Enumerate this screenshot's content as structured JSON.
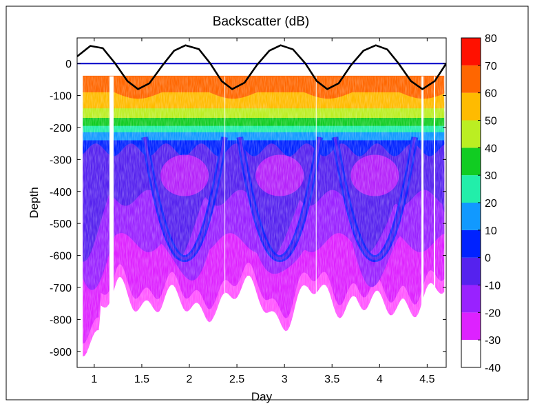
{
  "chart_data": {
    "type": "heatmap",
    "title": "Backscatter (dB)",
    "xlabel": "Day",
    "ylabel": "Depth",
    "xlim": [
      0.82,
      4.7
    ],
    "ylim": [
      -950,
      80
    ],
    "xticks": [
      1,
      1.5,
      2,
      2.5,
      3,
      3.5,
      4,
      4.5
    ],
    "xtick_labels": [
      "1",
      "1.5",
      "2",
      "2.5",
      "3",
      "3.5",
      "4",
      "4.5"
    ],
    "yticks": [
      0,
      -100,
      -200,
      -300,
      -400,
      -500,
      -600,
      -700,
      -800,
      -900
    ],
    "ytick_labels": [
      "0",
      "-100",
      "-200",
      "-300",
      "-400",
      "-500",
      "-600",
      "-700",
      "-800",
      "-900"
    ],
    "grid": false,
    "colorbar": {
      "levels": [
        -40,
        -30,
        -20,
        -10,
        0,
        10,
        20,
        30,
        40,
        50,
        60,
        70,
        80
      ],
      "tick_labels": [
        "-40",
        "-30",
        "-20",
        "-10",
        "0",
        "10",
        "20",
        "30",
        "40",
        "50",
        "60",
        "70",
        "80"
      ],
      "colors": [
        "#ffffff",
        "#ff55ff",
        "#dd22ff",
        "#9922ff",
        "#5522ee",
        "#0022ff",
        "#1199ff",
        "#22eeaa",
        "#11cc22",
        "#bbee22",
        "#ffbb00",
        "#ff6600",
        "#ff1100"
      ]
    },
    "zero_line": {
      "y": 0,
      "color": "#0000cc"
    },
    "sine_line": {
      "color": "#000000",
      "x": [
        0.82,
        0.96,
        1.09,
        1.22,
        1.35,
        1.46,
        1.58,
        1.72,
        1.84,
        1.96,
        2.1,
        2.22,
        2.34,
        2.45,
        2.58,
        2.71,
        2.84,
        2.96,
        3.09,
        3.22,
        3.34,
        3.45,
        3.57,
        3.7,
        3.83,
        3.96,
        4.08,
        4.2,
        4.33,
        4.45,
        4.58,
        4.7
      ],
      "y": [
        22,
        55,
        48,
        0,
        -55,
        -80,
        -62,
        -5,
        40,
        57,
        45,
        0,
        -55,
        -80,
        -60,
        -5,
        40,
        57,
        44,
        0,
        -55,
        -80,
        -62,
        -5,
        40,
        57,
        44,
        0,
        -55,
        -80,
        -55,
        0
      ]
    }
  }
}
